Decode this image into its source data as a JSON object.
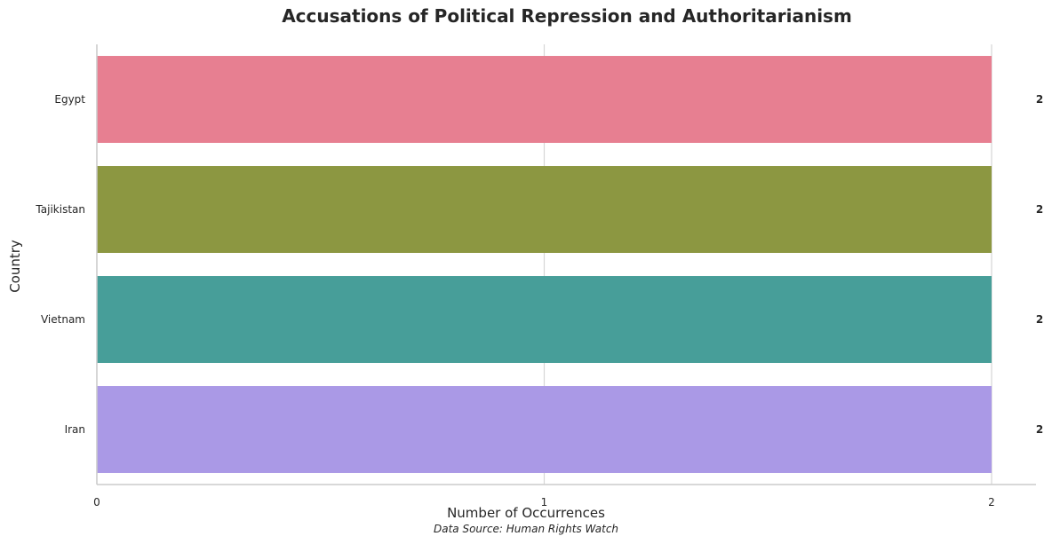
{
  "chart_data": {
    "type": "bar",
    "orientation": "horizontal",
    "title": "Accusations of Political Repression and Authoritarianism",
    "xlabel": "Number of Occurrences",
    "ylabel": "Country",
    "categories": [
      "Egypt",
      "Tajikistan",
      "Vietnam",
      "Iran"
    ],
    "values": [
      2,
      2,
      2,
      2
    ],
    "value_labels": [
      "2",
      "2",
      "2",
      "2"
    ],
    "colors": [
      "#e77f91",
      "#8c9741",
      "#479e99",
      "#aa99e6"
    ],
    "xlim": [
      0,
      2
    ],
    "xticks": [
      0,
      1,
      2
    ],
    "xtick_labels": [
      "0",
      "1",
      "2"
    ],
    "grid": "vertical",
    "legend": "none",
    "source": "Data Source: Human Rights Watch"
  }
}
